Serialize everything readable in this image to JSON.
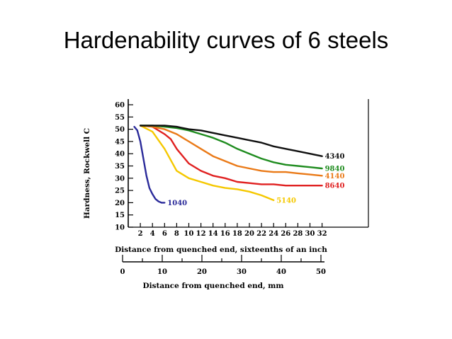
{
  "slide": {
    "title": "Hardenability curves of 6 steels"
  },
  "chart_data": {
    "type": "line",
    "title": "",
    "ylabel": "Hardness, Rockwell C",
    "xlabel": "Distance from quenched end, sixteenths of an inch",
    "xlabel_mm": "Distance from quenched end, mm",
    "ylim": [
      10,
      60
    ],
    "xlim": [
      0,
      32
    ],
    "xlim_mm": [
      0,
      50
    ],
    "y_ticks": [
      10,
      15,
      20,
      25,
      30,
      35,
      40,
      45,
      50,
      55,
      60
    ],
    "x_ticks": [
      2,
      4,
      6,
      8,
      10,
      12,
      14,
      16,
      18,
      20,
      22,
      24,
      26,
      28,
      30,
      32
    ],
    "x_ticks_mm": [
      0,
      10,
      20,
      30,
      40,
      50
    ],
    "grid": false,
    "series": [
      {
        "name": "1040",
        "color": "#2a2a9a",
        "x": [
          1,
          1.5,
          2,
          2.5,
          3,
          3.5,
          4,
          4.5,
          5,
          5.5,
          6
        ],
        "y": [
          51,
          49.5,
          45,
          38,
          31,
          26,
          23.5,
          21.5,
          20.5,
          20,
          20
        ]
      },
      {
        "name": "5140",
        "color": "#f5c800",
        "x": [
          2,
          4,
          6,
          8,
          10,
          12,
          14,
          16,
          18,
          20,
          22,
          24
        ],
        "y": [
          51.5,
          49,
          42,
          33,
          30,
          28.5,
          27,
          26,
          25.5,
          24.5,
          23,
          21
        ]
      },
      {
        "name": "8640",
        "color": "#e02020",
        "x": [
          2,
          4,
          6,
          7,
          8,
          10,
          12,
          14,
          16,
          18,
          20,
          22,
          24,
          26,
          28,
          30,
          32
        ],
        "y": [
          51.5,
          51,
          48,
          46,
          42,
          36,
          33,
          31,
          30,
          28.5,
          28,
          27.5,
          27.5,
          27,
          27,
          27,
          27
        ]
      },
      {
        "name": "4140",
        "color": "#ea7a18",
        "x": [
          2,
          4,
          6,
          8,
          10,
          12,
          14,
          16,
          18,
          20,
          22,
          24,
          26,
          28,
          30,
          32
        ],
        "y": [
          51.5,
          51,
          50,
          48,
          45,
          42,
          39,
          37,
          35,
          34,
          33,
          32.5,
          32.5,
          32,
          31.5,
          31
        ]
      },
      {
        "name": "9840",
        "color": "#1f8c1f",
        "x": [
          2,
          4,
          6,
          8,
          10,
          12,
          14,
          16,
          18,
          20,
          22,
          24,
          26,
          28,
          30,
          32
        ],
        "y": [
          51.5,
          51.5,
          51,
          50.5,
          49.5,
          48,
          46.5,
          44.5,
          42,
          40,
          38,
          36.5,
          35.5,
          35,
          34.5,
          34
        ]
      },
      {
        "name": "4340",
        "color": "#101010",
        "x": [
          2,
          4,
          6,
          8,
          10,
          12,
          14,
          16,
          18,
          20,
          22,
          24,
          26,
          28,
          30,
          32
        ],
        "y": [
          51.5,
          51.5,
          51.5,
          51,
          50,
          49.5,
          48.5,
          47.5,
          46.5,
          45.5,
          44.5,
          43,
          42,
          41,
          40,
          39
        ]
      }
    ]
  }
}
